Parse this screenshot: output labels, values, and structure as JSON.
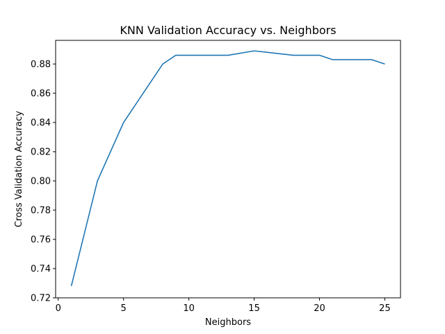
{
  "chart_data": {
    "type": "line",
    "title": "KNN Validation Accuracy vs. Neighbors",
    "xlabel": "Neighbors",
    "ylabel": "Cross Validation Accuracy",
    "xlim": [
      -0.2,
      26.2
    ],
    "ylim": [
      0.72,
      0.8962
    ],
    "x_ticks": [
      0,
      5,
      10,
      15,
      20,
      25
    ],
    "x_tick_labels": [
      "0",
      "5",
      "10",
      "15",
      "20",
      "25"
    ],
    "y_ticks": [
      0.72,
      0.74,
      0.76,
      0.78,
      0.8,
      0.82,
      0.84,
      0.86,
      0.88
    ],
    "y_tick_labels": [
      "0.72",
      "0.74",
      "0.76",
      "0.78",
      "0.80",
      "0.82",
      "0.84",
      "0.86",
      "0.88"
    ],
    "grid": false,
    "line_color": "#1f77b4",
    "series": [
      {
        "x": [
          1,
          3,
          5,
          8,
          9,
          13,
          15,
          18,
          20,
          21,
          24,
          25
        ],
        "values": [
          0.728,
          0.8,
          0.84,
          0.88,
          0.886,
          0.886,
          0.889,
          0.886,
          0.886,
          0.883,
          0.883,
          0.88
        ]
      }
    ]
  }
}
